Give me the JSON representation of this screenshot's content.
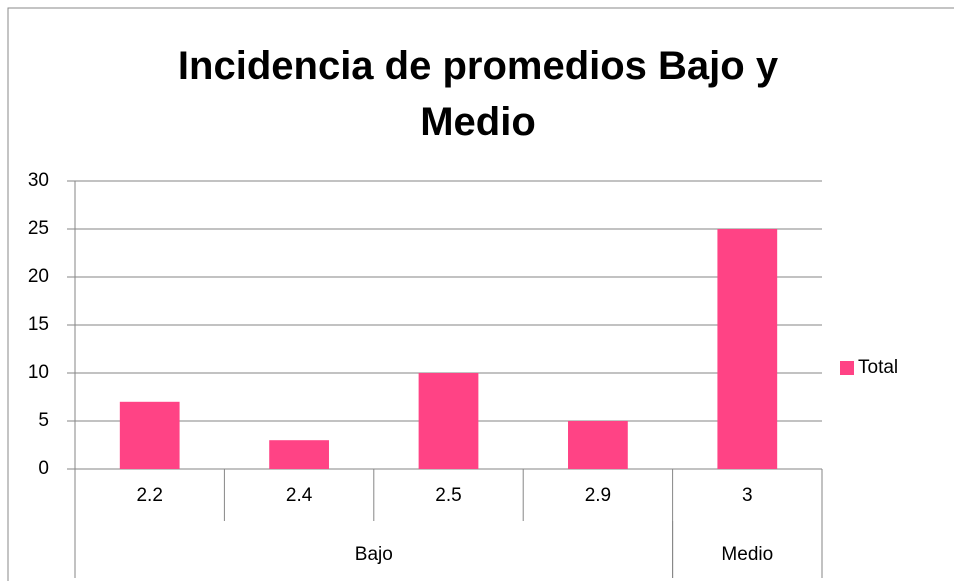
{
  "chart_data": {
    "type": "bar",
    "title": "Incidencia de promedios Bajo y Medio",
    "categories": [
      "2.2",
      "2.4",
      "2.5",
      "2.9",
      "3"
    ],
    "groups": [
      {
        "name": "Bajo",
        "count": 4
      },
      {
        "name": "Medio",
        "count": 1
      }
    ],
    "series": [
      {
        "name": "Total",
        "color": "#ff4385",
        "values": [
          7,
          3,
          10,
          5,
          25
        ]
      }
    ],
    "ylim": [
      0,
      30
    ],
    "yticks": [
      0,
      5,
      10,
      15,
      20,
      25,
      30
    ],
    "grid": true,
    "legend": "right"
  }
}
